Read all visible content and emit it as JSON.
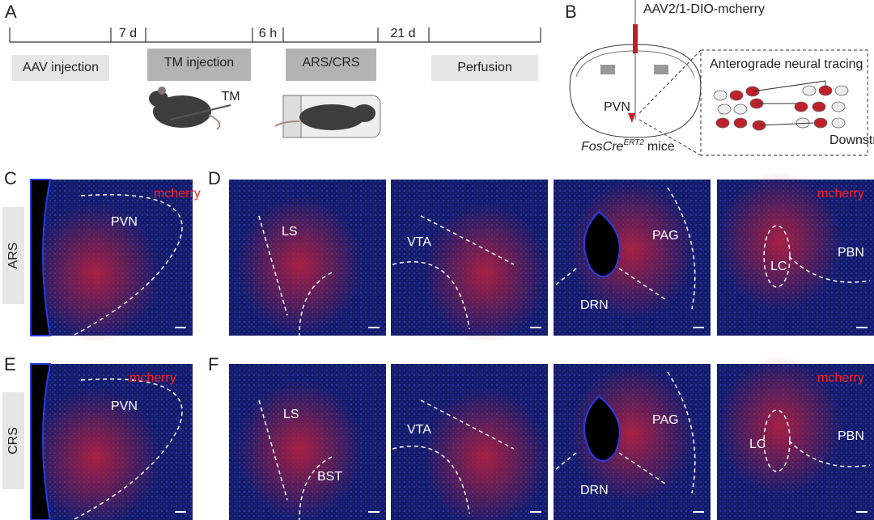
{
  "panel_labels": [
    "A",
    "B",
    "C",
    "D",
    "E",
    "F"
  ],
  "timeline": {
    "steps": [
      "AAV injection",
      "TM injection",
      "ARS/CRS",
      "Perfusion"
    ],
    "intervals": [
      "7 d",
      "6 h",
      "21 d"
    ],
    "drug": "TM"
  },
  "schematic": {
    "virus": "AAV2/1-DIO-mcherry",
    "region": "PVN",
    "mouse_line": "FosCre",
    "mouse_line_sup": "ERT2",
    "mouse_suffix": "mice",
    "inset_title": "Anterograde neural tracing",
    "inset_target": "Downstream"
  },
  "rows": [
    {
      "condition": "ARS",
      "channel": "mcherry",
      "pvn": "PVN",
      "regions": [
        "LS",
        "VTA",
        "DRN",
        "PAG",
        "LC",
        "PBN"
      ]
    },
    {
      "condition": "CRS",
      "channel": "mcherry",
      "pvn": "PVN",
      "regions": [
        "LS",
        "BST",
        "VTA",
        "DRN",
        "PAG",
        "LC",
        "PBN"
      ]
    }
  ]
}
